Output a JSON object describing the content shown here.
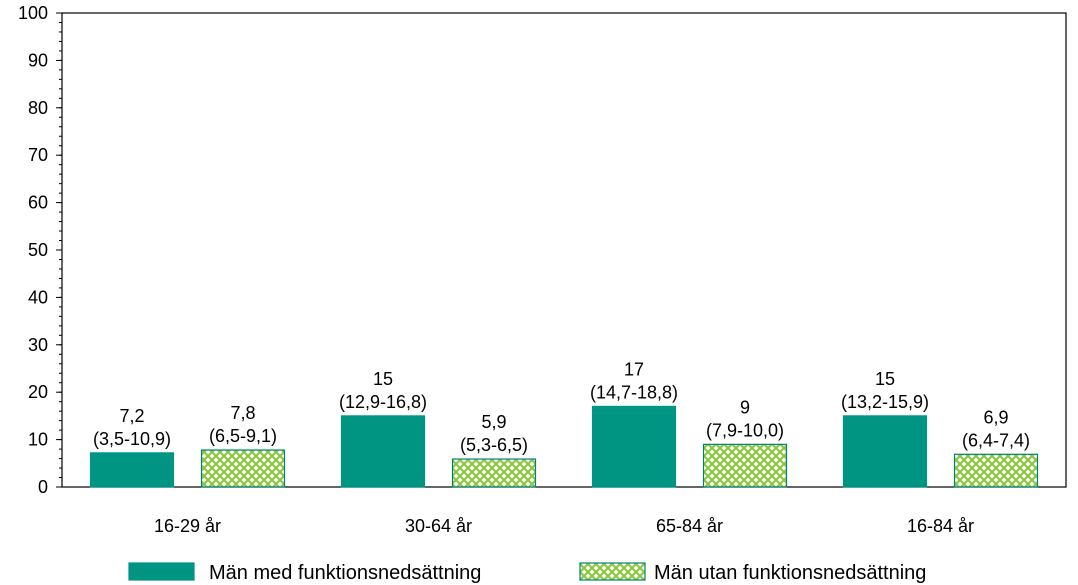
{
  "chart_data": {
    "type": "bar",
    "categories": [
      "16-29 år",
      "30-64 år",
      "65-84 år",
      "16-84 år"
    ],
    "series": [
      {
        "name": "Män med funktionsnedsättning",
        "color": "#009482",
        "pattern": "solid",
        "values": [
          7.2,
          15,
          17,
          15
        ],
        "labels": [
          "7,2",
          "15",
          "17",
          "15"
        ],
        "intervals": [
          "(3,5-10,9)",
          "(12,9-16,8)",
          "(14,7-18,8)",
          "(13,2-15,9)"
        ]
      },
      {
        "name": "Män utan funktionsnedsättning",
        "color": "#8cc63f",
        "pattern": "crosshatch",
        "values": [
          7.8,
          5.9,
          9,
          6.9
        ],
        "labels": [
          "7,8",
          "5,9",
          "9",
          "6,9"
        ],
        "intervals": [
          "(6,5-9,1)",
          "(5,3-6,5)",
          "(7,9-10,0)",
          "(6,4-7,4)"
        ]
      }
    ],
    "ylim": [
      0,
      100
    ],
    "yticks": [
      0,
      10,
      20,
      30,
      40,
      50,
      60,
      70,
      80,
      90,
      100
    ],
    "xlabel": "",
    "ylabel": "",
    "title": "",
    "grid": false,
    "legend_position": "bottom"
  }
}
